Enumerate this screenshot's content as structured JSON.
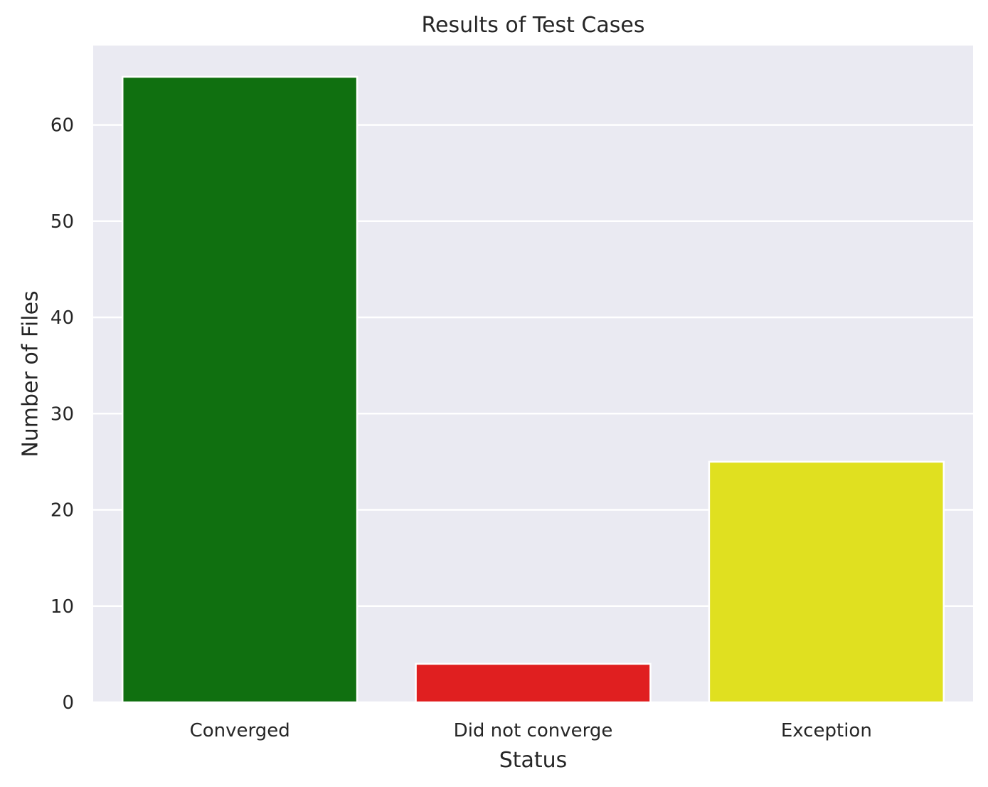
{
  "chart_data": {
    "type": "bar",
    "title": "Results of Test Cases",
    "xlabel": "Status",
    "ylabel": "Number of Files",
    "categories": [
      "Converged",
      "Did not converge",
      "Exception"
    ],
    "values": [
      65,
      4,
      25
    ],
    "colors": [
      "#107010",
      "#e01f20",
      "#e0e020"
    ],
    "ylim": [
      0,
      68.25
    ],
    "yticks": [
      0,
      10,
      20,
      30,
      40,
      50,
      60
    ],
    "grid": true,
    "background": "#eaeaf2",
    "legend": "none"
  }
}
